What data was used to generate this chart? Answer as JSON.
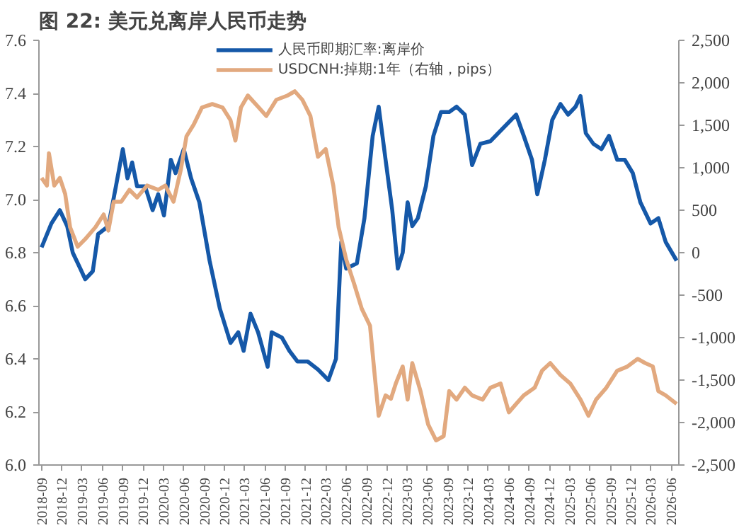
{
  "chart_data": {
    "type": "line",
    "title": "图 22:  美元兑离岸人民币走势",
    "xlim": [
      "2018-08-20",
      "2026-07-05"
    ],
    "xticks": [
      "2018-09",
      "2018-12",
      "2019-03",
      "2019-06",
      "2019-09",
      "2019-12",
      "2020-03",
      "2020-06",
      "2020-09",
      "2020-12",
      "2021-03",
      "2021-06",
      "2021-09",
      "2021-12",
      "2022-03",
      "2022-06",
      "2022-09",
      "2022-12",
      "2023-03",
      "2023-06",
      "2023-09",
      "2023-12",
      "2024-03",
      "2024-06",
      "2024-09",
      "2024-12",
      "2025-03",
      "2025-06",
      "2025-09",
      "2025-12",
      "2026-03",
      "2026-06"
    ],
    "ylim": [
      6.0,
      7.6
    ],
    "yticks": [
      {
        "value": 6.0,
        "label": "6.0"
      },
      6.2,
      6.4,
      6.6,
      6.8,
      {
        "value": 7.0,
        "label": "7.0"
      },
      7.2,
      7.4,
      7.6
    ],
    "y2lim": [
      -2500,
      2500
    ],
    "y2ticks": [
      {
        "value": -2500,
        "label": "-2,500"
      },
      {
        "value": -2000,
        "label": "-2,000"
      },
      {
        "value": -1500,
        "label": "-1,500"
      },
      {
        "value": -1000,
        "label": "-1,000"
      },
      {
        "value": -500,
        "label": "-500"
      },
      {
        "value": 0,
        "label": "0"
      },
      {
        "value": 500,
        "label": "500"
      },
      {
        "value": 1000,
        "label": "1,000"
      },
      {
        "value": 1500,
        "label": "1,500"
      },
      {
        "value": 2000,
        "label": "2,000"
      },
      {
        "value": 2500,
        "label": "2,500"
      }
    ],
    "grid": false,
    "legend": "top",
    "line_style": "solid",
    "marker": "none",
    "series": [
      {
        "name": "人民币即期汇率:离岸价",
        "color": "#1558a8",
        "x": [
          "2018-09-01",
          "2018-10-15",
          "2018-11-22",
          "2018-12-25",
          "2019-01-19",
          "2019-02-22",
          "2019-03-16",
          "2019-04-19",
          "2019-05-13",
          "2019-06-28",
          "2019-08-01",
          "2019-09-01",
          "2019-09-22",
          "2019-10-13",
          "2019-11-04",
          "2019-12-10",
          "2020-01-13",
          "2020-02-07",
          "2020-03-04",
          "2020-04-04",
          "2020-04-25",
          "2020-06-01",
          "2020-07-04",
          "2020-08-10",
          "2020-09-25",
          "2020-11-10",
          "2020-12-28",
          "2021-02-01",
          "2021-02-25",
          "2021-03-28",
          "2021-05-01",
          "2021-06-13",
          "2021-07-01",
          "2021-08-16",
          "2021-09-19",
          "2021-10-25",
          "2021-12-10",
          "2022-01-25",
          "2022-03-13",
          "2022-04-16",
          "2022-05-10",
          "2022-06-01",
          "2022-07-19",
          "2022-08-22",
          "2022-09-28",
          "2022-10-25",
          "2022-11-25",
          "2022-12-25",
          "2023-01-19",
          "2023-02-10",
          "2023-03-04",
          "2023-03-25",
          "2023-04-19",
          "2023-05-25",
          "2023-06-28",
          "2023-08-01",
          "2023-09-07",
          "2023-10-10",
          "2023-11-16",
          "2023-12-19",
          "2024-01-25",
          "2024-03-10",
          "2024-05-07",
          "2024-07-04",
          "2024-08-07",
          "2024-09-13",
          "2024-10-07",
          "2024-11-10",
          "2024-12-13",
          "2025-01-19",
          "2025-02-22",
          "2025-03-28",
          "2025-04-19",
          "2025-05-13",
          "2025-06-16",
          "2025-07-22",
          "2025-08-25",
          "2025-10-01",
          "2025-11-04",
          "2025-12-10",
          "2026-01-13",
          "2026-02-28",
          "2026-04-04",
          "2026-05-07",
          "2026-06-25"
        ],
        "values": [
          6.82,
          6.91,
          6.96,
          6.9,
          6.8,
          6.74,
          6.7,
          6.73,
          6.87,
          6.9,
          7.05,
          7.19,
          7.08,
          7.14,
          7.05,
          7.05,
          6.96,
          7.02,
          6.94,
          7.15,
          7.1,
          7.19,
          7.08,
          6.99,
          6.77,
          6.59,
          6.46,
          6.5,
          6.43,
          6.57,
          6.5,
          6.37,
          6.5,
          6.48,
          6.43,
          6.39,
          6.39,
          6.36,
          6.32,
          6.4,
          6.84,
          6.74,
          6.76,
          6.93,
          7.24,
          7.35,
          7.15,
          6.96,
          6.74,
          6.8,
          6.99,
          6.9,
          6.93,
          7.05,
          7.24,
          7.33,
          7.33,
          7.35,
          7.32,
          7.13,
          7.21,
          7.22,
          7.27,
          7.32,
          7.24,
          7.15,
          7.02,
          7.15,
          7.3,
          7.36,
          7.32,
          7.35,
          7.39,
          7.25,
          7.21,
          7.19,
          7.24,
          7.15,
          7.15,
          7.1,
          6.99,
          6.91,
          6.93,
          6.84,
          6.77
        ]
      },
      {
        "name": "USDCNH:掉期:1年（右轴，pips）",
        "color": "#e2a97f",
        "axis": "y2",
        "x": [
          "2018-09-01",
          "2018-09-25",
          "2018-10-04",
          "2018-10-28",
          "2018-11-22",
          "2018-12-16",
          "2019-01-07",
          "2019-02-10",
          "2019-03-16",
          "2019-05-01",
          "2019-06-07",
          "2019-06-28",
          "2019-07-22",
          "2019-08-25",
          "2019-10-01",
          "2019-11-04",
          "2019-12-19",
          "2020-02-07",
          "2020-03-10",
          "2020-04-16",
          "2020-05-19",
          "2020-06-13",
          "2020-07-16",
          "2020-08-22",
          "2020-10-07",
          "2020-11-22",
          "2020-12-28",
          "2021-01-19",
          "2021-02-13",
          "2021-03-16",
          "2021-05-04",
          "2021-06-07",
          "2021-07-22",
          "2021-09-10",
          "2021-10-13",
          "2021-11-16",
          "2021-12-22",
          "2022-01-25",
          "2022-03-01",
          "2022-04-04",
          "2022-04-28",
          "2022-06-01",
          "2022-07-07",
          "2022-08-10",
          "2022-09-16",
          "2022-10-07",
          "2022-10-25",
          "2022-11-25",
          "2022-12-19",
          "2023-01-10",
          "2023-02-10",
          "2023-03-04",
          "2023-03-25",
          "2023-05-01",
          "2023-06-04",
          "2023-07-10",
          "2023-08-13",
          "2023-09-07",
          "2023-10-10",
          "2023-11-16",
          "2023-12-19",
          "2024-02-04",
          "2024-03-10",
          "2024-04-25",
          "2024-06-01",
          "2024-07-04",
          "2024-08-07",
          "2024-09-25",
          "2024-10-28",
          "2024-12-04",
          "2025-01-19",
          "2025-03-04",
          "2025-04-19",
          "2025-05-25",
          "2025-06-28",
          "2025-08-13",
          "2025-10-01",
          "2025-11-16",
          "2026-01-01",
          "2026-02-04",
          "2026-03-10",
          "2026-04-04",
          "2026-05-07",
          "2026-06-25"
        ],
        "values": [
          880,
          790,
          1170,
          790,
          880,
          690,
          300,
          70,
          160,
          300,
          450,
          260,
          600,
          600,
          740,
          650,
          790,
          740,
          790,
          600,
          980,
          1370,
          1510,
          1710,
          1750,
          1710,
          1560,
          1320,
          1710,
          1850,
          1710,
          1610,
          1800,
          1850,
          1900,
          1800,
          1610,
          1130,
          1220,
          790,
          300,
          -80,
          -370,
          -660,
          -860,
          -1440,
          -1920,
          -1680,
          -1720,
          -1540,
          -1340,
          -1730,
          -1300,
          -1630,
          -2020,
          -2210,
          -2160,
          -1630,
          -1730,
          -1590,
          -1680,
          -1730,
          -1590,
          -1540,
          -1880,
          -1780,
          -1680,
          -1590,
          -1390,
          -1300,
          -1440,
          -1540,
          -1730,
          -1920,
          -1730,
          -1590,
          -1390,
          -1340,
          -1250,
          -1300,
          -1340,
          -1630,
          -1680,
          -1780
        ]
      }
    ]
  }
}
